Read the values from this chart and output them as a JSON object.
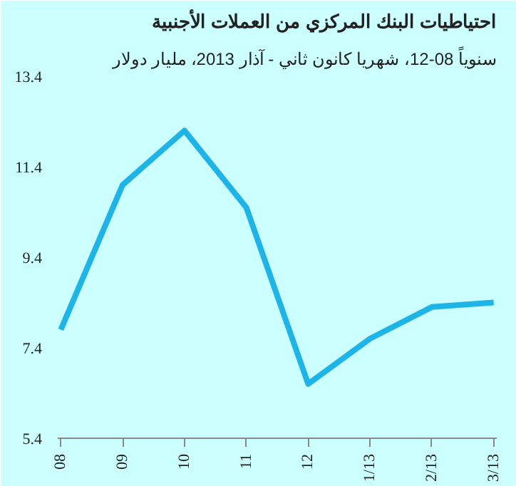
{
  "chart_data": {
    "type": "line",
    "title": "احتياطيات البنك المركزي من العملات الأجنبية",
    "subtitle": "سنوياً 08-12، شهريا كانون ثاني - آذار 2013، مليار دولار",
    "categories": [
      "08",
      "09",
      "10",
      "11",
      "12",
      "1/13",
      "2/13",
      "3/13"
    ],
    "series": [
      {
        "color": "#1eb4e8",
        "values": [
          7.8,
          11.0,
          12.2,
          10.5,
          6.6,
          7.6,
          8.3,
          8.4
        ]
      }
    ],
    "ylim": [
      5.4,
      13.4
    ],
    "yticks": [
      5.4,
      7.4,
      9.4,
      11.4,
      13.4
    ],
    "grid": false,
    "marker": "none",
    "line_style": "solid"
  }
}
